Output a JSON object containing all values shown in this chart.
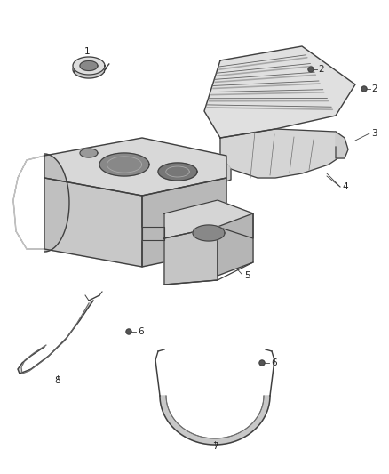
{
  "background_color": "#ffffff",
  "line_color": "#404040",
  "label_color": "#222222",
  "figsize": [
    4.38,
    5.33
  ],
  "dpi": 100,
  "label_fontsize": 7.5,
  "tank_color": "#e8e8e8",
  "shield_fill": "#d8d8d8"
}
